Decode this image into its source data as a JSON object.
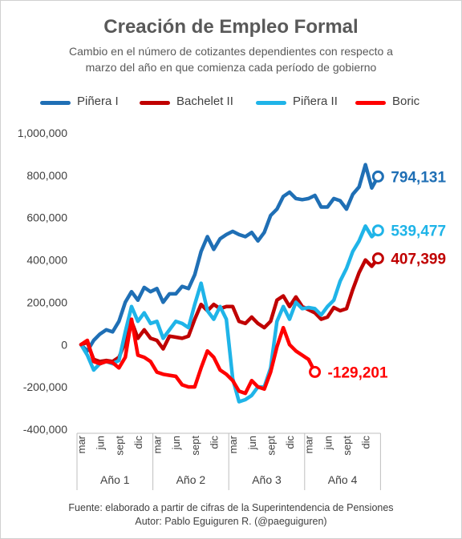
{
  "chart_data": {
    "type": "line",
    "title": "Creación de Empleo Formal",
    "subtitle": [
      "Cambio en el número de cotizantes dependientes con respecto a",
      "marzo del año en que comienza cada período de gobierno"
    ],
    "ylim": [
      -400000,
      1000000
    ],
    "yticks": [
      -400000,
      -200000,
      0,
      200000,
      400000,
      600000,
      800000,
      1000000
    ],
    "ytick_labels": [
      "-400,000",
      "-200,000",
      "0",
      "200,000",
      "400,000",
      "600,000",
      "800,000",
      "1,000,000"
    ],
    "month_labels": [
      "mar",
      "jun",
      "sept",
      "dic"
    ],
    "year_labels": [
      "Año 1",
      "Año 2",
      "Año 3",
      "Año 4"
    ],
    "grid": false,
    "legend_position": "top",
    "series": [
      {
        "name": "Piñera I",
        "color": "#1F6FB5",
        "final_label": "794,131",
        "values": [
          0,
          -30,
          20,
          50,
          70,
          60,
          110,
          200,
          250,
          210,
          270,
          250,
          265,
          200,
          240,
          240,
          275,
          265,
          330,
          440,
          510,
          450,
          500,
          520,
          535,
          520,
          510,
          530,
          490,
          530,
          610,
          640,
          700,
          720,
          690,
          685,
          690,
          705,
          650,
          650,
          690,
          680,
          640,
          710,
          745,
          850,
          740,
          794.131
        ]
      },
      {
        "name": "Bachelet II",
        "color": "#C00000",
        "final_label": "407,399",
        "values": [
          0,
          10,
          -70,
          -80,
          -75,
          -80,
          -60,
          10,
          110,
          30,
          70,
          30,
          20,
          -20,
          40,
          35,
          30,
          40,
          120,
          190,
          160,
          190,
          170,
          180,
          180,
          110,
          100,
          130,
          100,
          80,
          110,
          210,
          230,
          180,
          225,
          180,
          165,
          150,
          120,
          130,
          175,
          160,
          170,
          260,
          340,
          400,
          370,
          407.399
        ]
      },
      {
        "name": "Piñera II",
        "color": "#1FB4E8",
        "final_label": "539,477",
        "values": [
          0,
          -50,
          -120,
          -90,
          -80,
          -90,
          -75,
          60,
          180,
          110,
          150,
          100,
          110,
          30,
          70,
          110,
          100,
          80,
          190,
          290,
          160,
          120,
          180,
          120,
          -160,
          -270,
          -260,
          -240,
          -200,
          -200,
          -110,
          110,
          180,
          120,
          200,
          170,
          175,
          170,
          140,
          180,
          210,
          300,
          360,
          440,
          490,
          560,
          510,
          539.477
        ]
      },
      {
        "name": "Boric",
        "color": "#FF0000",
        "final_label": "-129,201",
        "values": [
          0,
          20,
          -80,
          -90,
          -80,
          -85,
          -110,
          -60,
          120,
          -50,
          -60,
          -80,
          -130,
          -140,
          -145,
          -150,
          -190,
          -200,
          -200,
          -110,
          -30,
          -60,
          -120,
          -140,
          -170,
          -220,
          -230,
          -170,
          -200,
          -210,
          -130,
          -10,
          80,
          0,
          -30,
          -50,
          -70,
          -129.201
        ]
      }
    ]
  },
  "footer": {
    "line1": "Fuente: elaborado a partir de cifras de la Superintendencia de Pensiones",
    "line2": "Autor: Pablo Eguiguren R. (@paeguiguren)"
  }
}
